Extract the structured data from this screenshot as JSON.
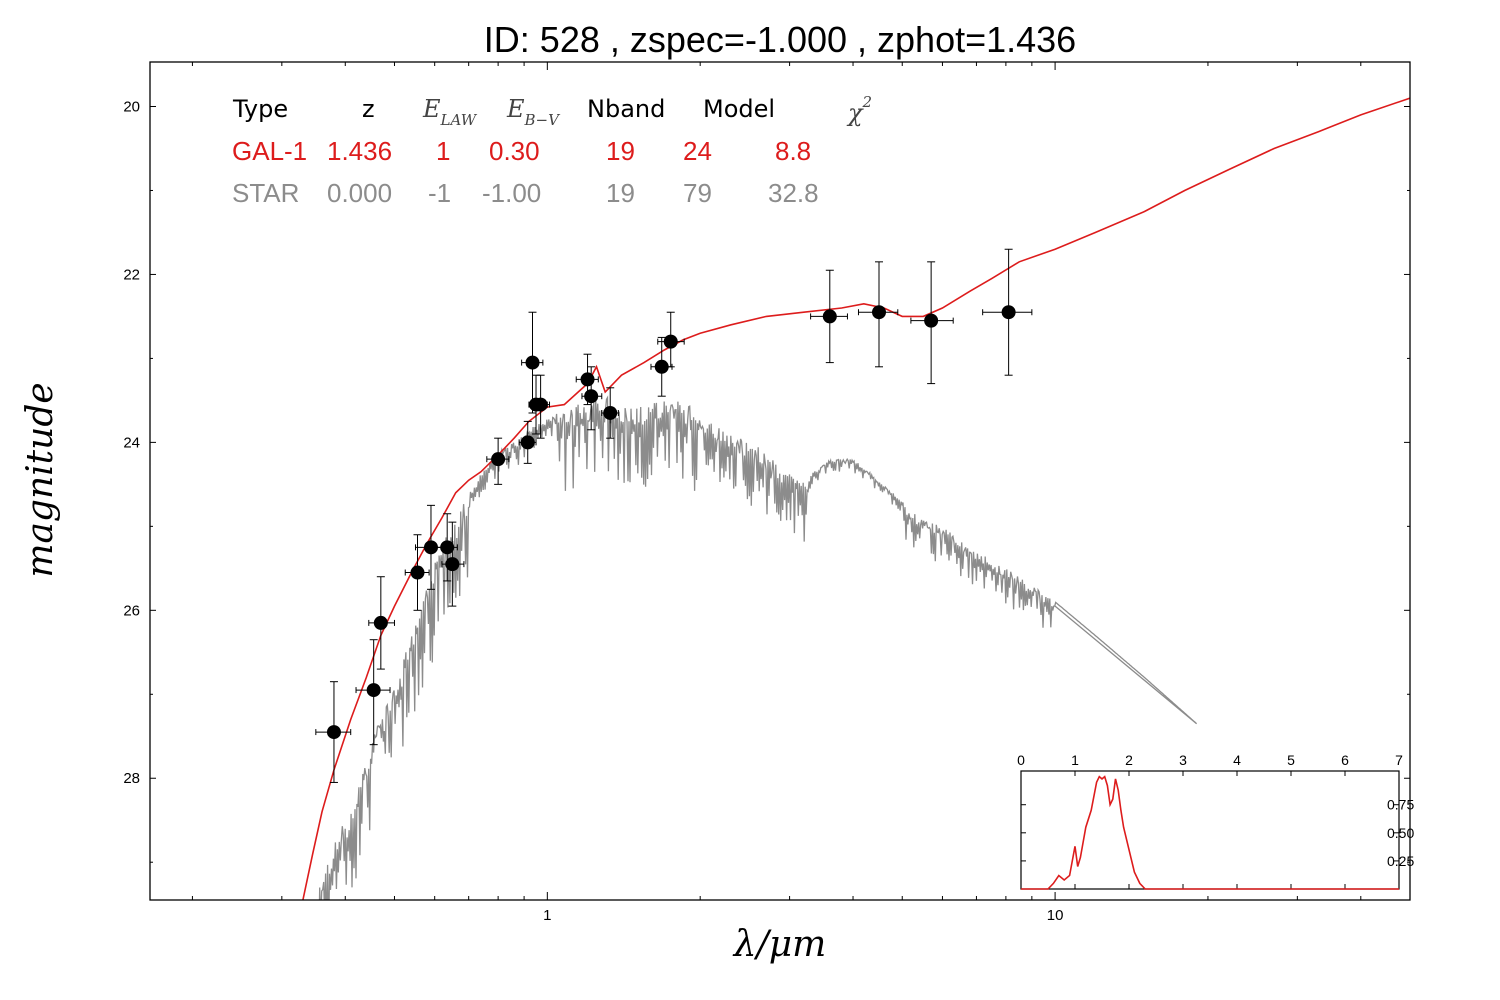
{
  "title": "ID:  528   , zspec=-1.000 , zphot=1.436",
  "colors": {
    "galaxy": "#dd1c1c",
    "star": "#8c8c8c",
    "points": "#000000"
  },
  "table": {
    "headers": {
      "type": "Type",
      "z": "z",
      "elaw_main": "E",
      "elaw_sub": "LAW",
      "ebv_main": "E",
      "ebv_sub": "B−V",
      "nband": "Nband",
      "model": "Model",
      "chi_main": "χ",
      "chi_sup": "2"
    },
    "rows": [
      {
        "name": "GAL-1",
        "color": "#dd1c1c",
        "values": [
          "GAL-1",
          "1.436",
          "1",
          "0.30",
          "19",
          "24",
          "8.8"
        ]
      },
      {
        "name": "STAR",
        "color": "#8c8c8c",
        "values": [
          "STAR",
          "0.000",
          "-1",
          "-1.00",
          "19",
          "79",
          "32.8"
        ]
      }
    ]
  },
  "chart_data": {
    "type": "scatter",
    "title": "ID:  528   , zspec=-1.000 , zphot=1.436",
    "xlabel": "λ/μm",
    "ylabel": "magnitude",
    "xscale": "log",
    "xlim": [
      0.165,
      50
    ],
    "ylim": [
      29.45,
      19.47
    ],
    "y_inverted": true,
    "xticks": [
      {
        "v": 1,
        "label": "1"
      },
      {
        "v": 10,
        "label": "10"
      }
    ],
    "yticks": [
      {
        "v": 20,
        "label": "20"
      },
      {
        "v": 22,
        "label": "22"
      },
      {
        "v": 24,
        "label": "24"
      },
      {
        "v": 26,
        "label": "26"
      },
      {
        "v": 28,
        "label": "28"
      }
    ],
    "points": [
      {
        "x": 0.38,
        "y": 27.45,
        "xerr": [
          0.35,
          0.41
        ],
        "yerr": [
          26.85,
          28.05
        ]
      },
      {
        "x": 0.455,
        "y": 26.95,
        "xerr": [
          0.42,
          0.49
        ],
        "yerr": [
          26.35,
          27.6
        ]
      },
      {
        "x": 0.47,
        "y": 26.15,
        "xerr": [
          0.445,
          0.5
        ],
        "yerr": [
          25.6,
          26.7
        ]
      },
      {
        "x": 0.555,
        "y": 25.55,
        "xerr": [
          0.525,
          0.585
        ],
        "yerr": [
          25.1,
          26.0
        ]
      },
      {
        "x": 0.59,
        "y": 25.25,
        "xerr": [
          0.55,
          0.635
        ],
        "yerr": [
          24.75,
          25.75
        ]
      },
      {
        "x": 0.635,
        "y": 25.25,
        "xerr": [
          0.605,
          0.665
        ],
        "yerr": [
          24.85,
          25.65
        ]
      },
      {
        "x": 0.65,
        "y": 25.45,
        "xerr": [
          0.62,
          0.685
        ],
        "yerr": [
          24.95,
          25.95
        ]
      },
      {
        "x": 0.8,
        "y": 24.2,
        "xerr": [
          0.76,
          0.84
        ],
        "yerr": [
          23.95,
          24.5
        ]
      },
      {
        "x": 0.915,
        "y": 24.0,
        "xerr": [
          0.88,
          0.95
        ],
        "yerr": [
          23.75,
          24.25
        ]
      },
      {
        "x": 0.935,
        "y": 23.05,
        "xerr": [
          0.89,
          0.98
        ],
        "yerr": [
          22.45,
          23.65
        ]
      },
      {
        "x": 0.95,
        "y": 23.55,
        "xerr": [
          0.92,
          1.0
        ],
        "yerr": [
          23.2,
          23.9
        ]
      },
      {
        "x": 0.97,
        "y": 23.55,
        "xerr": [
          0.93,
          1.01
        ],
        "yerr": [
          23.2,
          23.95
        ]
      },
      {
        "x": 1.2,
        "y": 23.25,
        "xerr": [
          1.14,
          1.26
        ],
        "yerr": [
          22.95,
          23.55
        ]
      },
      {
        "x": 1.22,
        "y": 23.45,
        "xerr": [
          1.17,
          1.28
        ],
        "yerr": [
          23.1,
          23.85
        ]
      },
      {
        "x": 1.33,
        "y": 23.65,
        "xerr": [
          1.28,
          1.38
        ],
        "yerr": [
          23.35,
          23.95
        ]
      },
      {
        "x": 1.68,
        "y": 23.1,
        "xerr": [
          1.6,
          1.76
        ],
        "yerr": [
          22.75,
          23.45
        ]
      },
      {
        "x": 1.75,
        "y": 22.8,
        "xerr": [
          1.65,
          1.86
        ],
        "yerr": [
          22.45,
          23.1
        ]
      },
      {
        "x": 3.6,
        "y": 22.5,
        "xerr": [
          3.3,
          3.9
        ],
        "yerr": [
          21.95,
          23.05
        ]
      },
      {
        "x": 4.5,
        "y": 22.45,
        "xerr": [
          4.1,
          4.9
        ],
        "yerr": [
          21.85,
          23.1
        ]
      },
      {
        "x": 5.7,
        "y": 22.55,
        "xerr": [
          5.2,
          6.3
        ],
        "yerr": [
          21.85,
          23.3
        ]
      },
      {
        "x": 8.1,
        "y": 22.45,
        "xerr": [
          7.2,
          9.0
        ],
        "yerr": [
          21.7,
          23.2
        ]
      }
    ],
    "galaxy_curve": [
      [
        0.33,
        29.45
      ],
      [
        0.345,
        28.9
      ],
      [
        0.36,
        28.4
      ],
      [
        0.38,
        27.9
      ],
      [
        0.41,
        27.3
      ],
      [
        0.44,
        26.8
      ],
      [
        0.47,
        26.3
      ],
      [
        0.5,
        25.95
      ],
      [
        0.54,
        25.55
      ],
      [
        0.58,
        25.2
      ],
      [
        0.62,
        24.9
      ],
      [
        0.66,
        24.6
      ],
      [
        0.7,
        24.45
      ],
      [
        0.74,
        24.35
      ],
      [
        0.8,
        24.15
      ],
      [
        0.86,
        23.95
      ],
      [
        0.92,
        23.75
      ],
      [
        1.0,
        23.58
      ],
      [
        1.08,
        23.55
      ],
      [
        1.15,
        23.4
      ],
      [
        1.2,
        23.3
      ],
      [
        1.25,
        23.1
      ],
      [
        1.3,
        23.4
      ],
      [
        1.4,
        23.2
      ],
      [
        1.55,
        23.05
      ],
      [
        1.7,
        22.9
      ],
      [
        1.85,
        22.78
      ],
      [
        2.0,
        22.7
      ],
      [
        2.3,
        22.6
      ],
      [
        2.7,
        22.5
      ],
      [
        3.2,
        22.45
      ],
      [
        3.8,
        22.4
      ],
      [
        4.2,
        22.35
      ],
      [
        4.6,
        22.4
      ],
      [
        5.0,
        22.5
      ],
      [
        5.5,
        22.5
      ],
      [
        6.0,
        22.4
      ],
      [
        6.8,
        22.2
      ],
      [
        7.5,
        22.05
      ],
      [
        8.5,
        21.85
      ],
      [
        10,
        21.7
      ],
      [
        12,
        21.5
      ],
      [
        15,
        21.25
      ],
      [
        18,
        21.0
      ],
      [
        22,
        20.75
      ],
      [
        27,
        20.5
      ],
      [
        33,
        20.3
      ],
      [
        40,
        20.1
      ],
      [
        50,
        19.9
      ]
    ],
    "star_envelope": [
      [
        0.35,
        29.45
      ],
      [
        0.37,
        28.9
      ],
      [
        0.4,
        28.5
      ],
      [
        0.43,
        28.0
      ],
      [
        0.46,
        27.4
      ],
      [
        0.5,
        26.9
      ],
      [
        0.54,
        26.3
      ],
      [
        0.58,
        25.7
      ],
      [
        0.62,
        25.2
      ],
      [
        0.66,
        24.9
      ],
      [
        0.7,
        24.6
      ],
      [
        0.75,
        24.3
      ],
      [
        0.8,
        24.1
      ],
      [
        0.86,
        24.0
      ],
      [
        0.92,
        23.85
      ],
      [
        1.0,
        23.7
      ],
      [
        1.1,
        23.6
      ],
      [
        1.2,
        23.5
      ],
      [
        1.3,
        23.45
      ],
      [
        1.45,
        23.55
      ],
      [
        1.6,
        23.55
      ],
      [
        1.75,
        23.45
      ],
      [
        1.9,
        23.55
      ],
      [
        2.1,
        23.75
      ],
      [
        2.3,
        23.9
      ],
      [
        2.6,
        24.05
      ],
      [
        2.9,
        24.3
      ],
      [
        3.2,
        24.45
      ],
      [
        3.6,
        24.2
      ],
      [
        4.0,
        24.2
      ],
      [
        4.4,
        24.4
      ],
      [
        4.9,
        24.65
      ],
      [
        5.4,
        24.9
      ],
      [
        6.0,
        25.0
      ],
      [
        6.6,
        25.2
      ],
      [
        7.5,
        25.4
      ],
      [
        8.5,
        25.6
      ],
      [
        10,
        25.9
      ],
      [
        12,
        26.3
      ],
      [
        15,
        26.8
      ],
      [
        19,
        27.35
      ]
    ],
    "inset": {
      "xlim": [
        0,
        7
      ],
      "ylim": [
        0,
        1.05
      ],
      "xticks": [
        "0",
        "1",
        "2",
        "3",
        "4",
        "5",
        "6",
        "7"
      ],
      "yticks": [
        "0.25",
        "0.50",
        "0.75"
      ],
      "pdf": [
        [
          0,
          0.0
        ],
        [
          0.5,
          0.0
        ],
        [
          0.6,
          0.05
        ],
        [
          0.7,
          0.12
        ],
        [
          0.8,
          0.08
        ],
        [
          0.9,
          0.12
        ],
        [
          0.95,
          0.25
        ],
        [
          1.0,
          0.38
        ],
        [
          1.05,
          0.2
        ],
        [
          1.1,
          0.28
        ],
        [
          1.2,
          0.55
        ],
        [
          1.3,
          0.7
        ],
        [
          1.4,
          0.95
        ],
        [
          1.45,
          1.0
        ],
        [
          1.5,
          0.98
        ],
        [
          1.55,
          1.0
        ],
        [
          1.6,
          0.92
        ],
        [
          1.65,
          0.75
        ],
        [
          1.7,
          0.8
        ],
        [
          1.75,
          0.98
        ],
        [
          1.8,
          0.88
        ],
        [
          1.85,
          0.7
        ],
        [
          1.9,
          0.55
        ],
        [
          2.0,
          0.35
        ],
        [
          2.1,
          0.15
        ],
        [
          2.2,
          0.05
        ],
        [
          2.3,
          0.0
        ],
        [
          7,
          0.0
        ]
      ]
    }
  }
}
